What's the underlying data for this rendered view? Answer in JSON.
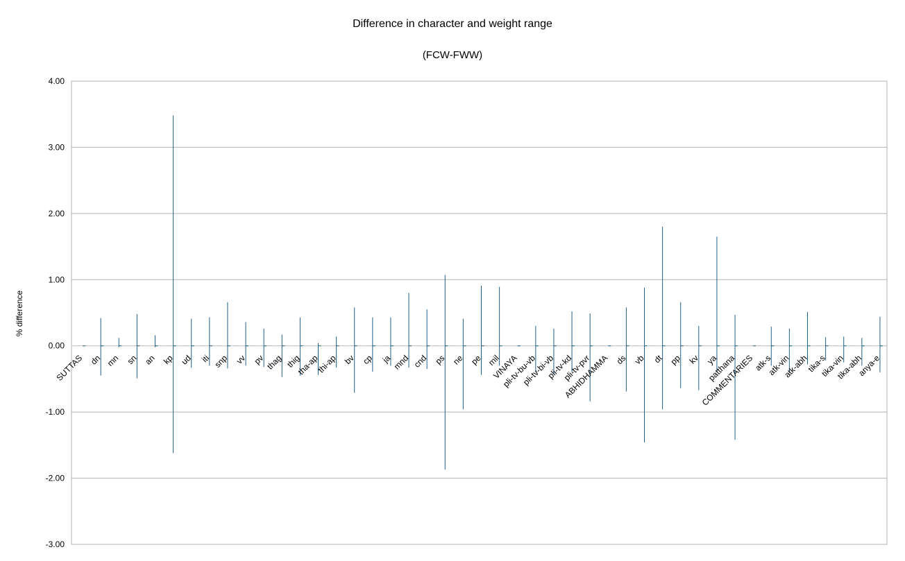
{
  "chart_data": {
    "type": "bar",
    "title": "Difference in character and weight range",
    "subtitle": "(FCW-FWW)",
    "xlabel": "",
    "ylabel": "% difference",
    "ylim": [
      -3,
      4
    ],
    "yticks": [
      "4.00",
      "3.00",
      "2.00",
      "1.00",
      "0.00",
      "-1.00",
      "-2.00",
      "-3.00"
    ],
    "grid": true,
    "legend": "none",
    "bar_color": "#1f5f8b",
    "categories": [
      "SUTTAS",
      "dn",
      "mn",
      "sn",
      "an",
      "kp",
      "ud",
      "iti",
      "snp",
      "vv",
      "pv",
      "thag",
      "thig",
      "tha-ap",
      "thi-ap",
      "bv",
      "cp",
      "ja",
      "mnd",
      "cnd",
      "ps",
      "ne",
      "pe",
      "mil",
      "VINAYA",
      "pli-tv-bu-vb",
      "pli-tv-bi-vb",
      "pli-tv-kd",
      "pli-tv-pvr",
      "ABHIDHAMMA",
      "ds",
      "vb",
      "dt",
      "pp",
      "kv",
      "ya",
      "patthana",
      "COMMENTARIES",
      "atk-s",
      "atk-vin",
      "atk-abh",
      "tika-s",
      "tika-vin",
      "tika-abh",
      "anya-e"
    ],
    "series": [
      {
        "values": [
          0,
          0.42,
          0.12,
          0.48,
          0.16,
          3.48,
          0.41,
          0.43,
          0.66,
          0.36,
          0.26,
          0.17,
          0.43,
          0.04,
          0.14,
          0.58,
          0.43,
          0.43,
          0.8,
          0.55,
          1.07,
          0.41,
          0.91,
          0.89,
          0,
          0.3,
          0.26,
          0.52,
          0.49,
          0,
          0.58,
          0.88,
          1.8,
          0.66,
          0.3,
          1.65,
          0.47,
          0,
          0.29,
          0.26,
          0.51,
          0.13,
          0.14,
          0.12,
          0.44
        ]
      },
      {
        "values": [
          0,
          -0.45,
          -0.02,
          -0.49,
          -0.02,
          -1.62,
          -0.33,
          -0.3,
          -0.34,
          -0.3,
          -0.32,
          -0.47,
          -0.45,
          -0.44,
          -0.33,
          -0.71,
          -0.39,
          -0.3,
          -0.33,
          -0.35,
          -1.87,
          -0.96,
          -0.44,
          -0.3,
          0,
          -0.4,
          -0.42,
          -0.4,
          -0.84,
          0,
          -0.69,
          -1.46,
          -0.96,
          -0.64,
          -0.67,
          -0.4,
          -1.42,
          0,
          -0.3,
          -0.41,
          -0.28,
          -0.22,
          -0.25,
          -0.3,
          -0.4
        ]
      },
      {
        "values": [
          0,
          0,
          0,
          0,
          0,
          0,
          0,
          0,
          0,
          0,
          0,
          0,
          0,
          0,
          0,
          0,
          0,
          0,
          0,
          0,
          0,
          0,
          0,
          0,
          0,
          0,
          0,
          0,
          0,
          0,
          0,
          0,
          0,
          0,
          0,
          0,
          0,
          0,
          0,
          0,
          0,
          0,
          0,
          0,
          0
        ]
      }
    ]
  }
}
